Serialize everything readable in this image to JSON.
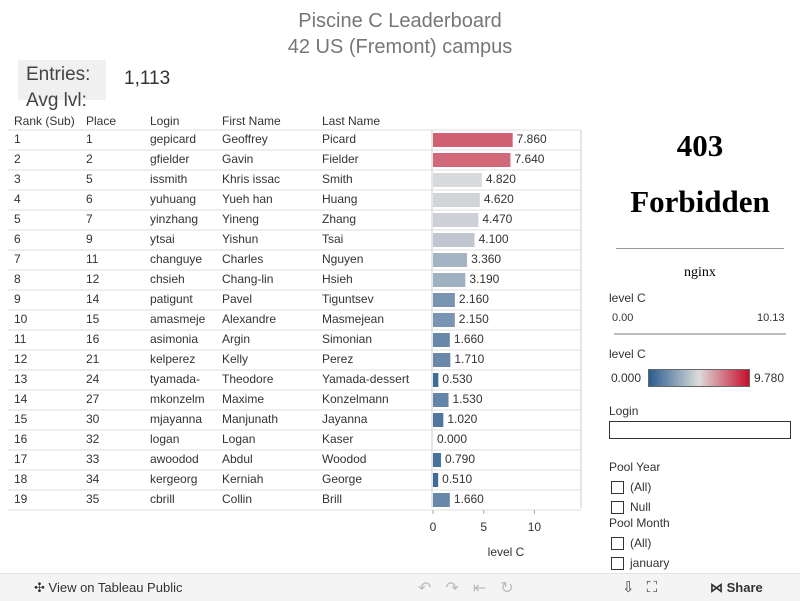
{
  "header": {
    "title": "Piscine C Leaderboard",
    "subtitle": "42 US (Fremont) campus"
  },
  "summary": {
    "entries_label": "Entries:",
    "entries_value": "1,113",
    "avg_label": "Avg lvl:"
  },
  "table": {
    "columns": [
      "Rank (Sub)",
      "Place",
      "Login",
      "First Name",
      "Last Name"
    ],
    "rows": [
      {
        "rank": 1,
        "place": 1,
        "login": "gepicard",
        "first": "Geoffrey",
        "last": "Picard",
        "level": 7.86,
        "level_label": "7.860"
      },
      {
        "rank": 2,
        "place": 2,
        "login": "gfielder",
        "first": "Gavin",
        "last": "Fielder",
        "level": 7.64,
        "level_label": "7.640"
      },
      {
        "rank": 3,
        "place": 5,
        "login": "issmith",
        "first": "Khris issac",
        "last": "Smith",
        "level": 4.82,
        "level_label": "4.820"
      },
      {
        "rank": 4,
        "place": 6,
        "login": "yuhuang",
        "first": "Yueh han",
        "last": "Huang",
        "level": 4.62,
        "level_label": "4.620"
      },
      {
        "rank": 5,
        "place": 7,
        "login": "yinzhang",
        "first": "Yineng",
        "last": "Zhang",
        "level": 4.47,
        "level_label": "4.470"
      },
      {
        "rank": 6,
        "place": 9,
        "login": "ytsai",
        "first": "Yishun",
        "last": "Tsai",
        "level": 4.1,
        "level_label": "4.100"
      },
      {
        "rank": 7,
        "place": 11,
        "login": "changuye",
        "first": "Charles",
        "last": "Nguyen",
        "level": 3.36,
        "level_label": "3.360"
      },
      {
        "rank": 8,
        "place": 12,
        "login": "chsieh",
        "first": "Chang-lin",
        "last": "Hsieh",
        "level": 3.19,
        "level_label": "3.190"
      },
      {
        "rank": 9,
        "place": 14,
        "login": "patigunt",
        "first": "Pavel",
        "last": "Tiguntsev",
        "level": 2.16,
        "level_label": "2.160"
      },
      {
        "rank": 10,
        "place": 15,
        "login": "amasmeje",
        "first": "Alexandre",
        "last": "Masmejean",
        "level": 2.15,
        "level_label": "2.150"
      },
      {
        "rank": 11,
        "place": 16,
        "login": "asimonia",
        "first": "Argin",
        "last": "Simonian",
        "level": 1.66,
        "level_label": "1.660"
      },
      {
        "rank": 12,
        "place": 21,
        "login": "kelperez",
        "first": "Kelly",
        "last": "Perez",
        "level": 1.71,
        "level_label": "1.710"
      },
      {
        "rank": 13,
        "place": 24,
        "login": "tyamada-",
        "first": "Theodore",
        "last": "Yamada-dessert",
        "level": 0.53,
        "level_label": "0.530"
      },
      {
        "rank": 14,
        "place": 27,
        "login": "mkonzelm",
        "first": "Maxime",
        "last": "Konzelmann",
        "level": 1.53,
        "level_label": "1.530"
      },
      {
        "rank": 15,
        "place": 30,
        "login": "mjayanna",
        "first": "Manjunath",
        "last": "Jayanna",
        "level": 1.02,
        "level_label": "1.020"
      },
      {
        "rank": 16,
        "place": 32,
        "login": "logan",
        "first": "Logan",
        "last": "Kaser",
        "level": 0,
        "level_label": "0.000"
      },
      {
        "rank": 17,
        "place": 33,
        "login": "awoodod",
        "first": "Abdul",
        "last": "Woodod",
        "level": 0.79,
        "level_label": "0.790"
      },
      {
        "rank": 18,
        "place": 34,
        "login": "kergeorg",
        "first": "Kerniah",
        "last": "George",
        "level": 0.51,
        "level_label": "0.510"
      },
      {
        "rank": 19,
        "place": 35,
        "login": "cbrill",
        "first": "Collin",
        "last": "Brill",
        "level": 1.66,
        "level_label": "1.660"
      }
    ],
    "xlim": [
      0,
      14.5
    ],
    "xticks": [
      0,
      5,
      10
    ],
    "xlabel": "level C"
  },
  "error_panel": {
    "code": "403",
    "message": "Forbidden",
    "server": "nginx"
  },
  "filters": {
    "slider": {
      "title": "level C",
      "min_label": "0.00",
      "max_label": "10.13"
    },
    "color_legend": {
      "title": "level C",
      "range": [
        0,
        9.78
      ],
      "min_label": "0.000",
      "max_label": "9.780",
      "colors": [
        "#2c5d8f",
        "#dcdcdc",
        "#c8102e"
      ]
    },
    "login": {
      "title": "Login"
    },
    "pool_year": {
      "title": "Pool Year",
      "options": [
        "(All)",
        "Null"
      ]
    },
    "pool_month": {
      "title": "Pool Month",
      "options": [
        "(All)",
        "january"
      ]
    }
  },
  "toolbar": {
    "view_label": "View on Tableau Public",
    "share_label": "Share"
  }
}
